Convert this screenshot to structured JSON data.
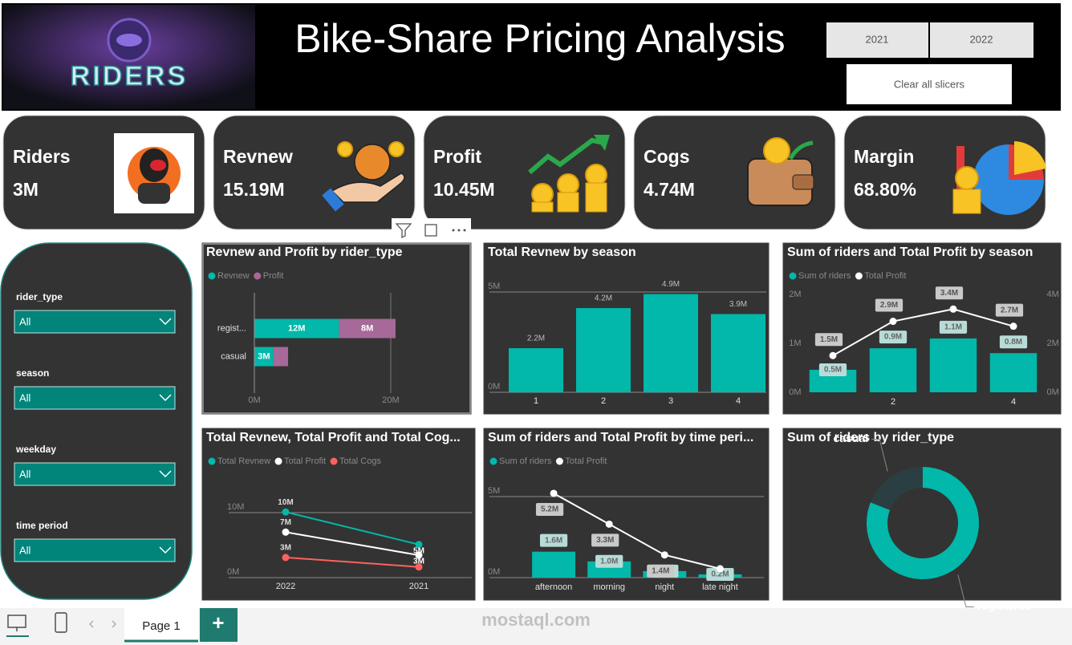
{
  "header": {
    "logo_text": "RIDERS",
    "title": "Bike-Share Pricing Analysis",
    "year_buttons": [
      "2021",
      "2022"
    ],
    "clear_button": "Clear all slicers"
  },
  "kpis": [
    {
      "label": "Riders",
      "value": "3M"
    },
    {
      "label": "Revnew",
      "value": "15.19M"
    },
    {
      "label": "Profit",
      "value": "10.45M"
    },
    {
      "label": "Cogs",
      "value": "4.74M"
    },
    {
      "label": "Margin",
      "value": "68.80%"
    }
  ],
  "slicers": [
    {
      "label": "rider_type",
      "value": "All"
    },
    {
      "label": "season",
      "value": "All"
    },
    {
      "label": "weekday",
      "value": "All"
    },
    {
      "label": "time period",
      "value": "All"
    }
  ],
  "footer": {
    "page_tab": "Page 1",
    "add_button": "+",
    "watermark": "mostaql.com"
  },
  "chart_data": [
    {
      "type": "bar",
      "horizontal": true,
      "stacked": true,
      "title": "Revnew and Profit by rider_type",
      "categories": [
        "regist...",
        "casual"
      ],
      "series": [
        {
          "name": "Revnew",
          "color": "#01b8aa",
          "values": [
            12.4,
            2.79
          ],
          "value_labels": [
            "12M",
            "3M"
          ]
        },
        {
          "name": "Profit",
          "color": "#a66999",
          "values": [
            8.3,
            2.15
          ],
          "value_labels": [
            "8M",
            null
          ]
        }
      ],
      "xlim": [
        0,
        30
      ],
      "xticks": [
        {
          "value": 0,
          "label": "0M"
        },
        {
          "value": 20,
          "label": "20M"
        }
      ],
      "grid": true
    },
    {
      "type": "bar",
      "title": "Total Revnew by season",
      "categories": [
        "1",
        "2",
        "3",
        "4"
      ],
      "values": [
        2.2,
        4.2,
        4.9,
        3.9
      ],
      "value_labels": [
        "2.2M",
        "4.2M",
        "4.9M",
        "3.9M"
      ],
      "color": "#01b8aa",
      "ylim": [
        0,
        5
      ],
      "yticks": [
        {
          "value": 0,
          "label": "0M"
        },
        {
          "value": 5,
          "label": "5M"
        }
      ],
      "grid": true
    },
    {
      "type": "combo",
      "title": "Sum of riders and Total Profit by season",
      "categories": [
        null,
        "2",
        null,
        "4"
      ],
      "series": [
        {
          "name": "Sum of riders",
          "kind": "bar",
          "color": "#01b8aa",
          "values": [
            0.46,
            0.9,
            1.1,
            0.8
          ],
          "value_labels": [
            "0.5M",
            "0.9M",
            "1.1M",
            "0.8M"
          ]
        },
        {
          "name": "Total Profit",
          "kind": "line",
          "axis": "y2",
          "color": "#ffffff",
          "values": [
            1.5,
            2.9,
            3.4,
            2.7
          ],
          "value_labels": [
            "1.5M",
            "2.9M",
            "3.4M",
            "2.7M"
          ]
        }
      ],
      "ylim": [
        0,
        2
      ],
      "yticks": [
        {
          "value": 0,
          "label": "0M"
        },
        {
          "value": 1,
          "label": "1M"
        },
        {
          "value": 2,
          "label": "2M"
        }
      ],
      "y2lim": [
        0,
        4
      ],
      "y2ticks": [
        {
          "value": 0,
          "label": "0M"
        },
        {
          "value": 2,
          "label": "2M"
        },
        {
          "value": 4,
          "label": "4M"
        }
      ],
      "grid": false
    },
    {
      "type": "line",
      "title": "Total Revnew, Total Profit and Total Cog...",
      "categories": [
        "2022",
        "2021"
      ],
      "series": [
        {
          "name": "Total Revnew",
          "color": "#01b8aa",
          "values": [
            10.1,
            5.09
          ],
          "value_labels": [
            "10M",
            "5M"
          ]
        },
        {
          "name": "Total Profit",
          "color": "#ffffff",
          "values": [
            7.0,
            3.45
          ],
          "value_labels": [
            "7M",
            "3M"
          ]
        },
        {
          "name": "Total Cogs",
          "color": "#fd625e",
          "values": [
            3.1,
            1.64
          ],
          "value_labels": [
            "3M",
            null
          ]
        }
      ],
      "ylim": [
        0,
        14
      ],
      "yticks": [
        {
          "value": 0,
          "label": "0M"
        },
        {
          "value": 10,
          "label": "10M"
        }
      ],
      "grid": true
    },
    {
      "type": "combo",
      "title": "Sum of riders and Total Profit by time peri...",
      "categories": [
        "afternoon",
        "morning",
        "night",
        "late night"
      ],
      "series": [
        {
          "name": "Sum of riders",
          "kind": "bar",
          "color": "#01b8aa",
          "values": [
            1.6,
            1.0,
            0.4,
            0.2
          ],
          "value_labels": [
            "1.6M",
            "1.0M",
            "0.4M",
            "0.2M"
          ]
        },
        {
          "name": "Total Profit",
          "kind": "line",
          "color": "#ffffff",
          "values": [
            5.2,
            3.3,
            1.4,
            0.55
          ],
          "value_labels": [
            "5.2M",
            "3.3M",
            "1.4M",
            null
          ]
        }
      ],
      "ylim": [
        0,
        6
      ],
      "yticks": [
        {
          "value": 0,
          "label": "0M"
        },
        {
          "value": 5,
          "label": "5M"
        }
      ],
      "grid": true
    },
    {
      "type": "donut",
      "title": "Sum of riders by rider_type",
      "categories": [
        "casual",
        "registered"
      ],
      "values": [
        0.62,
        2.64
      ],
      "colors": [
        "#2b3f42",
        "#01b8aa"
      ]
    }
  ]
}
